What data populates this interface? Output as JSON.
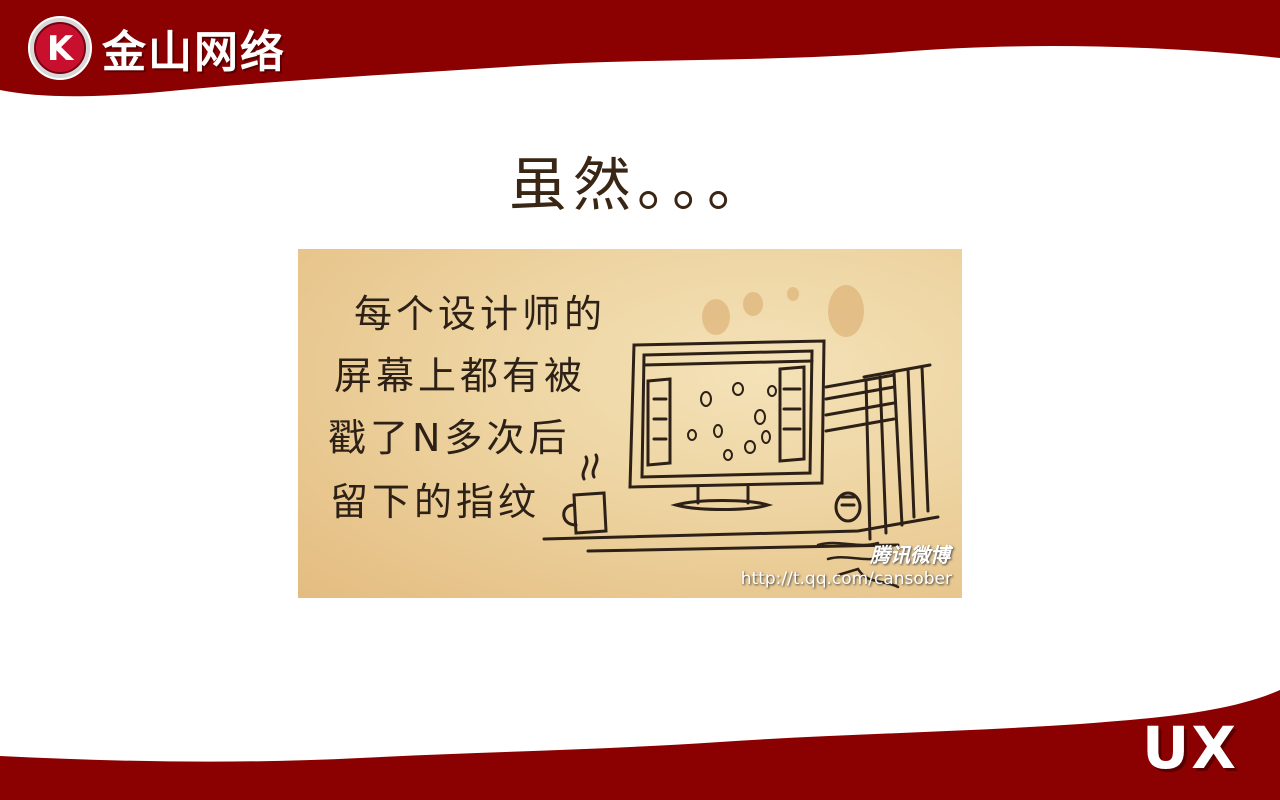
{
  "brand": {
    "logo_letter": "K",
    "logo_text": "金山网络",
    "corner_mark": "UX",
    "band_color": "#8b0000"
  },
  "slide": {
    "title": "虽然。。。"
  },
  "comic": {
    "lines": [
      "每个设计师的",
      "屏幕上都有被",
      "戳了N多次后",
      "留下的指纹"
    ],
    "watermark_brand": "腾讯微博",
    "watermark_url": "http://t.qq.com/cansober"
  }
}
